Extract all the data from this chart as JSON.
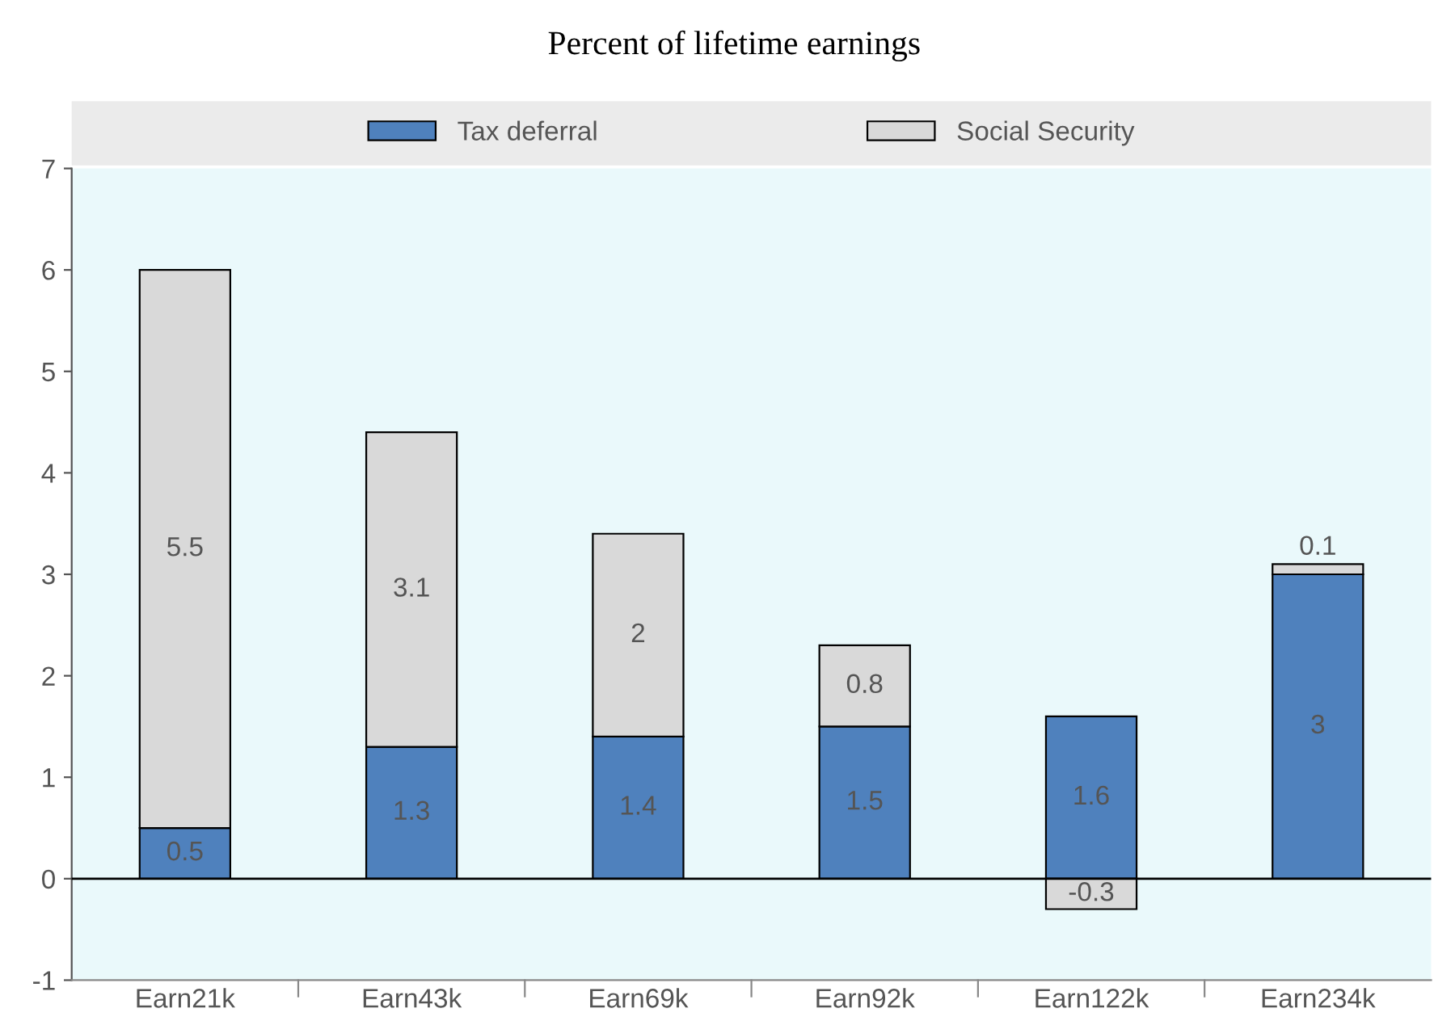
{
  "chart_data": {
    "type": "bar",
    "title": "Percent of lifetime earnings",
    "stacked": true,
    "categories": [
      "Earn21k",
      "Earn43k",
      "Earn69k",
      "Earn92k",
      "Earn122k",
      "Earn234k"
    ],
    "series": [
      {
        "name": "Tax deferral",
        "color": "#4f81bd",
        "values": [
          0.5,
          1.3,
          1.4,
          1.5,
          1.6,
          3
        ]
      },
      {
        "name": "Social Security",
        "color": "#d9d9d9",
        "values": [
          5.5,
          3.1,
          2,
          0.8,
          -0.3,
          0.1
        ]
      }
    ],
    "ylim": [
      -1,
      7
    ],
    "yticks": [
      -1,
      0,
      1,
      2,
      3,
      4,
      5,
      6,
      7
    ],
    "ref_lines": [
      {
        "axis": "y",
        "value": 0,
        "color": "#000000"
      }
    ],
    "legend": "top",
    "data_labels": true
  }
}
